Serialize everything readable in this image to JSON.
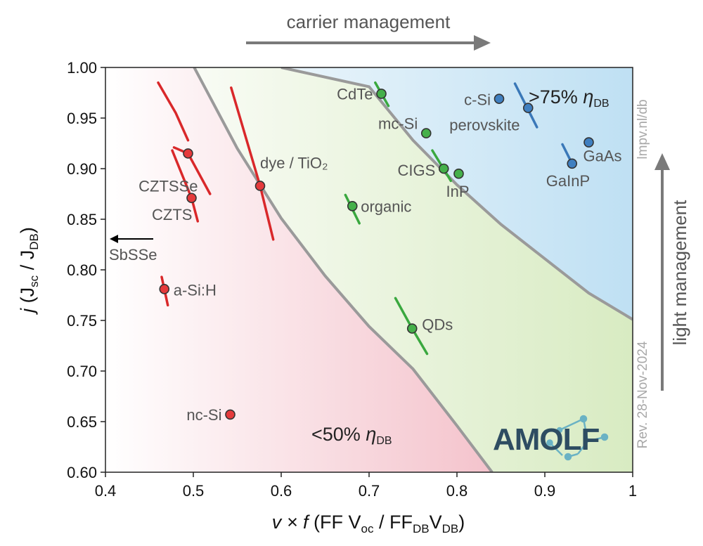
{
  "chart_data": {
    "type": "scatter",
    "xlabel_italic": "v × f",
    "xlabel_rest": "(FF V",
    "xlabel_sub1": "oc",
    "xlabel_mid": " / FF",
    "xlabel_sub2": "DB",
    "xlabel_mid2": "V",
    "xlabel_sub3": "DB",
    "xlabel_end": ")",
    "ylabel_italic": "j",
    "ylabel_rest": "(J",
    "ylabel_sub1": "sc",
    "ylabel_mid": " / J",
    "ylabel_sub2": "DB",
    "ylabel_end": ")",
    "xlim": [
      0.4,
      1.0
    ],
    "ylim": [
      0.6,
      1.0
    ],
    "xticks": [
      "0.4",
      "0.5",
      "0.6",
      "0.7",
      "0.8",
      "0.9",
      "1"
    ],
    "yticks": [
      "0.60",
      "0.65",
      "0.70",
      "0.75",
      "0.80",
      "0.85",
      "0.90",
      "0.95",
      "1.00"
    ],
    "top_arrow_label": "carrier management",
    "right_arrow_label": "light management",
    "side_text_top": "lmpv.nl/db",
    "side_text_bottom": "Rev. 28-Nov-2024",
    "logo_text": "AMOLF",
    "region_labels": {
      "high": {
        "prefix": ">75% ",
        "eta": "η",
        "sub": "DB"
      },
      "low": {
        "prefix": "<50% ",
        "eta": "η",
        "sub": "DB"
      }
    },
    "colors": {
      "red": "#d9282a",
      "green": "#3aa83f",
      "blue": "#3a78b8",
      "curve": "#9a9a9a",
      "pink": "#f4c3cc",
      "lightgreen": "#d8ebc2",
      "lightblue": "#bfe0f3",
      "logo": "#2e4d62",
      "logo_accent": "#6ab2c4"
    },
    "points": [
      {
        "label": "CdTe",
        "x": 0.714,
        "y": 0.974,
        "group": "green",
        "trend": [
          [
            0.707,
            0.985
          ],
          [
            0.722,
            0.962
          ]
        ]
      },
      {
        "label": "mc-Si",
        "x": 0.765,
        "y": 0.935,
        "group": "green"
      },
      {
        "label": "CIGS",
        "x": 0.785,
        "y": 0.9,
        "group": "green",
        "trend": [
          [
            0.772,
            0.918
          ],
          [
            0.793,
            0.888
          ]
        ]
      },
      {
        "label": "InP",
        "x": 0.802,
        "y": 0.895,
        "group": "green"
      },
      {
        "label": "organic",
        "x": 0.681,
        "y": 0.863,
        "group": "green",
        "trend": [
          [
            0.673,
            0.874
          ],
          [
            0.689,
            0.846
          ]
        ]
      },
      {
        "label": "QDs",
        "x": 0.749,
        "y": 0.742,
        "group": "green",
        "trend": [
          [
            0.73,
            0.772
          ],
          [
            0.749,
            0.742
          ],
          [
            0.766,
            0.717
          ]
        ]
      },
      {
        "label": "c-Si",
        "x": 0.848,
        "y": 0.969,
        "group": "blue"
      },
      {
        "label": "perovskite",
        "x": 0.881,
        "y": 0.96,
        "group": "blue",
        "trend": [
          [
            0.866,
            0.984
          ],
          [
            0.891,
            0.941
          ]
        ]
      },
      {
        "label": "GaAs",
        "x": 0.95,
        "y": 0.926,
        "group": "blue"
      },
      {
        "label": "GaInP",
        "x": 0.931,
        "y": 0.905,
        "group": "blue",
        "trend": [
          [
            0.92,
            0.924
          ],
          [
            0.931,
            0.905
          ]
        ]
      },
      {
        "label": "CZTSSe",
        "x": 0.494,
        "y": 0.915,
        "group": "red",
        "trend": [
          [
            0.478,
            0.921
          ],
          [
            0.494,
            0.915
          ],
          [
            0.519,
            0.875
          ]
        ]
      },
      {
        "label": "CZTS",
        "x": 0.498,
        "y": 0.871,
        "group": "red",
        "trend": [
          [
            0.476,
            0.918
          ],
          [
            0.498,
            0.871
          ],
          [
            0.505,
            0.848
          ]
        ]
      },
      {
        "label": "dye / TiO₂",
        "x": 0.576,
        "y": 0.883,
        "group": "red",
        "trend": [
          [
            0.543,
            0.98
          ],
          [
            0.576,
            0.883
          ],
          [
            0.591,
            0.83
          ]
        ]
      },
      {
        "label": "a-Si:H",
        "x": 0.467,
        "y": 0.781,
        "group": "red",
        "trend": [
          [
            0.464,
            0.793
          ],
          [
            0.471,
            0.765
          ]
        ]
      },
      {
        "label": "nc-Si",
        "x": 0.542,
        "y": 0.657,
        "group": "red"
      }
    ],
    "extra_labels": [
      {
        "label": "SbSSe",
        "arrow": "left",
        "x": 0.405,
        "y": 0.815
      }
    ],
    "bare_trends": [
      {
        "group": "red",
        "points": [
          [
            0.46,
            0.985
          ],
          [
            0.48,
            0.955
          ],
          [
            0.494,
            0.928
          ]
        ]
      }
    ],
    "contours": [
      {
        "name": "50% ηDB",
        "points": [
          [
            0.501,
            1.0
          ],
          [
            0.55,
            0.92
          ],
          [
            0.6,
            0.851
          ],
          [
            0.65,
            0.794
          ],
          [
            0.7,
            0.744
          ],
          [
            0.75,
            0.702
          ],
          [
            0.8,
            0.646
          ],
          [
            0.84,
            0.6
          ]
        ]
      },
      {
        "name": "75% ηDB",
        "points": [
          [
            0.6,
            1.0
          ],
          [
            0.7,
            0.981
          ],
          [
            0.75,
            0.928
          ],
          [
            0.8,
            0.884
          ],
          [
            0.85,
            0.845
          ],
          [
            0.9,
            0.811
          ],
          [
            0.95,
            0.777
          ],
          [
            1.0,
            0.751
          ]
        ]
      }
    ]
  }
}
